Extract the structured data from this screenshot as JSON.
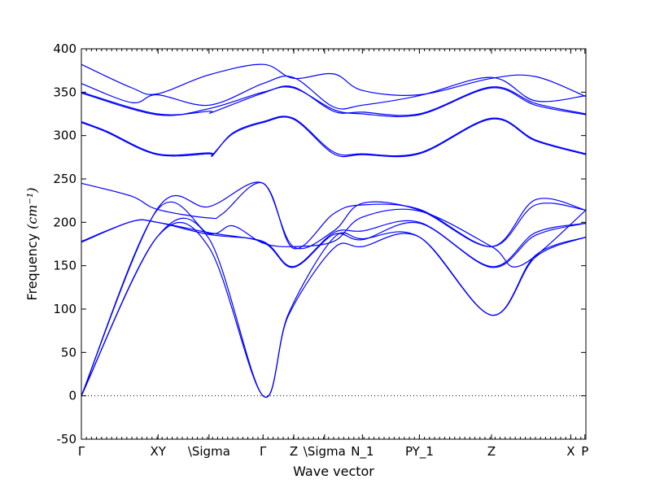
{
  "chart_data": {
    "type": "line",
    "title": "",
    "xlabel": "Wave vector",
    "ylabel": "Frequency",
    "ylabel_unit": "(cm⁻¹)",
    "ylim": [
      -50,
      400
    ],
    "xlim": [
      0,
      1
    ],
    "y_ticks": [
      -50,
      0,
      50,
      100,
      150,
      200,
      250,
      300,
      350,
      400
    ],
    "x_ticks": [
      {
        "label": "Γ",
        "x": 0.0
      },
      {
        "label": "XY",
        "x": 0.152
      },
      {
        "label": "\\Sigma",
        "x": 0.253
      },
      {
        "label": "Γ",
        "x": 0.36
      },
      {
        "label": "Z",
        "x": 0.421
      },
      {
        "label": "\\Sigma",
        "x": 0.482
      },
      {
        "label": "N_1",
        "x": 0.557
      },
      {
        "label": "PY_1",
        "x": 0.67
      },
      {
        "label": "Z",
        "x": 0.813
      },
      {
        "label": "X",
        "x": 0.97
      },
      {
        "label": "P",
        "x": 0.998
      }
    ],
    "reference_line": {
      "y": 0,
      "style": "dotted"
    },
    "line_color": "#0000ff",
    "grid": false,
    "legend": "none",
    "series": [
      {
        "x": [
          0,
          0.15,
          0.253,
          0.36,
          0.41,
          0.5,
          0.557,
          0.67,
          0.813,
          0.9,
          1.0
        ],
        "y": [
          0,
          183,
          171,
          0,
          92,
          170,
          172,
          183,
          93,
          160,
          183
        ]
      },
      {
        "x": [
          0,
          0.15,
          0.253,
          0.36,
          0.41,
          0.5,
          0.557,
          0.67,
          0.813,
          0.9,
          1.0
        ],
        "y": [
          0,
          183,
          181,
          0,
          94,
          182,
          181,
          183,
          93,
          162,
          183
        ]
      },
      {
        "x": [
          0,
          0.1,
          0.15,
          0.253,
          0.36,
          0.42,
          0.5,
          0.557,
          0.67,
          0.813,
          0.9,
          1.0
        ],
        "y": [
          177,
          201,
          200,
          188,
          177,
          148,
          186,
          180,
          199,
          148,
          185,
          199
        ]
      },
      {
        "x": [
          0,
          0.1,
          0.15,
          0.253,
          0.36,
          0.42,
          0.5,
          0.557,
          0.67,
          0.813,
          0.9,
          1.0
        ],
        "y": [
          178,
          201,
          200,
          186,
          178,
          149,
          188,
          190,
          200,
          149,
          188,
          199
        ]
      },
      {
        "x": [
          0,
          0.15,
          0.253,
          0.3,
          0.36,
          0.42,
          0.5,
          0.557,
          0.67,
          0.813,
          0.87,
          1.0
        ],
        "y": [
          0,
          214,
          187,
          196,
          176,
          172,
          178,
          206,
          213,
          172,
          150,
          214
        ]
      },
      {
        "x": [
          0,
          0.1,
          0.15,
          0.253,
          0.28,
          0.36,
          0.42,
          0.5,
          0.557,
          0.67,
          0.813,
          0.9,
          1.0
        ],
        "y": [
          245,
          230,
          215,
          205,
          210,
          245,
          172,
          190,
          222,
          214,
          172,
          226,
          214
        ]
      },
      {
        "x": [
          0,
          0.15,
          0.253,
          0.36,
          0.42,
          0.5,
          0.557,
          0.67,
          0.813,
          0.9,
          1.0
        ],
        "y": [
          0,
          215,
          218,
          245,
          170,
          210,
          220,
          215,
          172,
          220,
          214
        ]
      },
      {
        "x": [
          0,
          0.05,
          0.15,
          0.253,
          0.26,
          0.3,
          0.36,
          0.42,
          0.5,
          0.557,
          0.67,
          0.813,
          0.9,
          1.0
        ],
        "y": [
          316,
          305,
          279,
          280,
          277,
          303,
          316,
          320,
          281,
          279,
          280,
          320,
          295,
          279
        ]
      },
      {
        "x": [
          0,
          0.05,
          0.15,
          0.253,
          0.26,
          0.3,
          0.36,
          0.42,
          0.5,
          0.557,
          0.67,
          0.813,
          0.9,
          1.0
        ],
        "y": [
          315,
          304,
          278,
          279,
          278,
          302,
          315,
          319,
          279,
          278,
          279,
          319,
          294,
          278
        ]
      },
      {
        "x": [
          0,
          0.15,
          0.253,
          0.26,
          0.36,
          0.42,
          0.5,
          0.557,
          0.67,
          0.813,
          0.9,
          1.0
        ],
        "y": [
          350,
          325,
          328,
          327,
          349,
          356,
          328,
          327,
          325,
          356,
          337,
          325
        ]
      },
      {
        "x": [
          0,
          0.15,
          0.253,
          0.36,
          0.42,
          0.5,
          0.557,
          0.67,
          0.813,
          0.9,
          1.0
        ],
        "y": [
          349,
          324,
          331,
          350,
          355,
          330,
          325,
          324,
          355,
          335,
          324
        ]
      },
      {
        "x": [
          0,
          0.1,
          0.15,
          0.253,
          0.36,
          0.42,
          0.5,
          0.557,
          0.67,
          0.813,
          0.9,
          1.0
        ],
        "y": [
          360,
          338,
          347,
          335,
          360,
          367,
          333,
          335,
          346,
          367,
          340,
          346
        ]
      },
      {
        "x": [
          0,
          0.1,
          0.15,
          0.253,
          0.36,
          0.42,
          0.5,
          0.557,
          0.67,
          0.813,
          0.9,
          1.0
        ],
        "y": [
          382,
          355,
          348,
          370,
          382,
          366,
          371,
          352,
          347,
          366,
          368,
          345
        ]
      }
    ]
  }
}
